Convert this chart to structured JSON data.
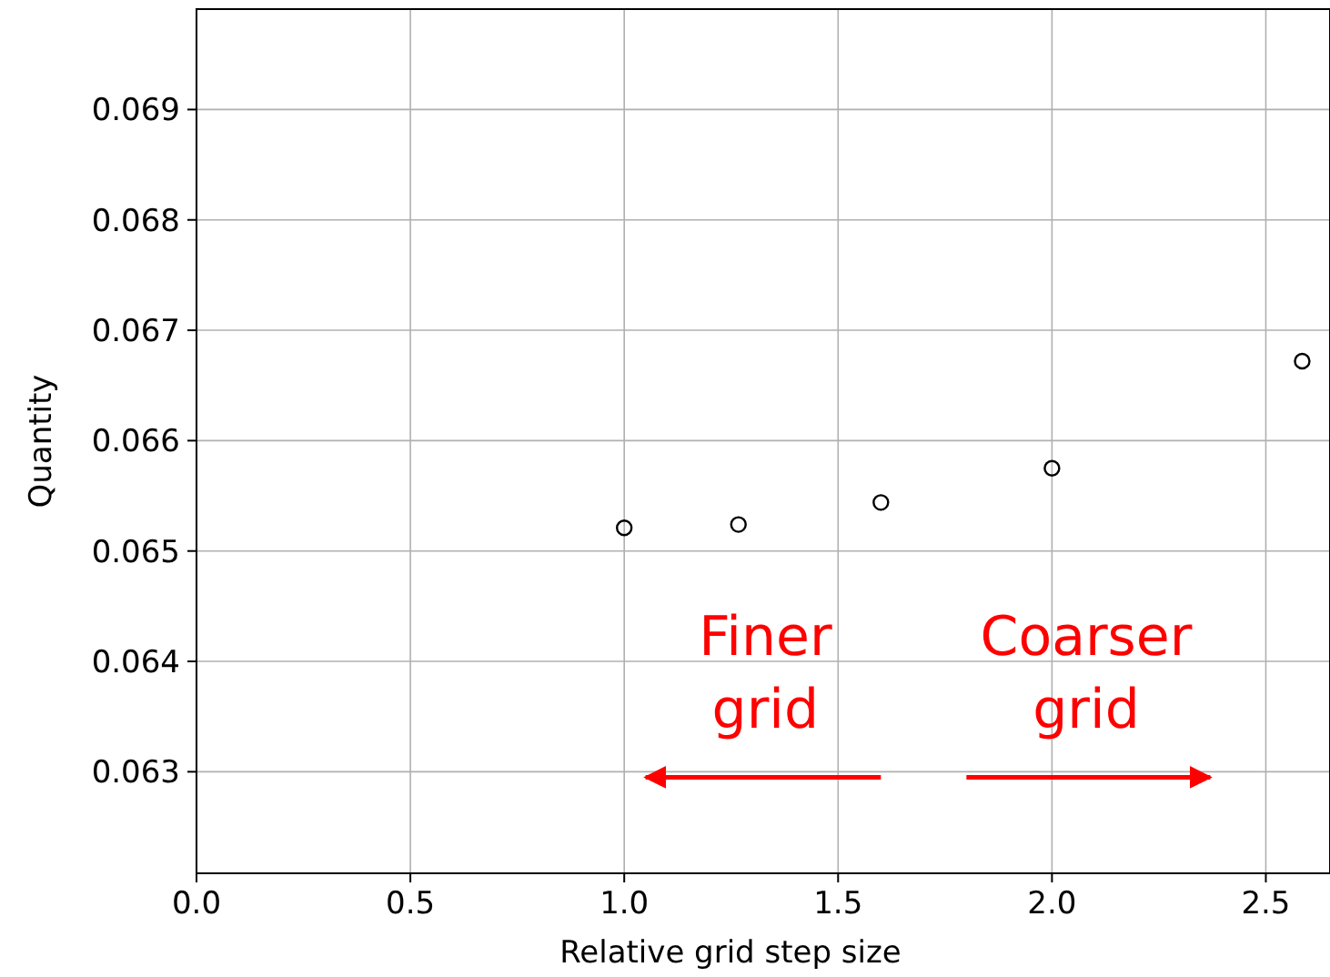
{
  "chart_data": {
    "type": "scatter",
    "xlabel": "Relative grid step size",
    "ylabel": "Quantity",
    "x": [
      1.0,
      1.267,
      1.6,
      2.0,
      2.585
    ],
    "values": [
      0.06521,
      0.06524,
      0.06544,
      0.06575,
      0.06672
    ],
    "color": "#000000",
    "marker": "circle",
    "grid": true,
    "xlim": [
      0,
      2.65
    ],
    "ylim": [
      0.06208,
      0.06991
    ],
    "xticks": [
      {
        "value": 0,
        "label": "0.0"
      },
      {
        "value": 0.5,
        "label": "0.5"
      },
      {
        "value": 1,
        "label": "1.0"
      },
      {
        "value": 1.5,
        "label": "1.5"
      },
      {
        "value": 2,
        "label": "2.0"
      },
      {
        "value": 2.5,
        "label": "2.5"
      }
    ],
    "yticks": [
      0.063,
      0.064,
      0.065,
      0.066,
      0.067,
      0.068,
      0.069
    ],
    "annotations": [
      "Finer grid",
      "Coarser grid"
    ]
  }
}
